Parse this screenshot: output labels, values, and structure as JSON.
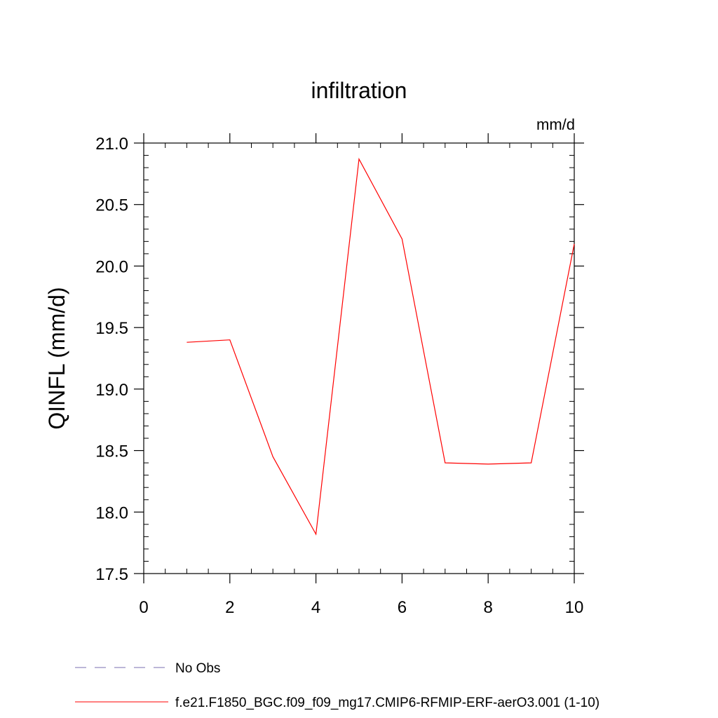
{
  "chart_data": {
    "type": "line",
    "title": "infiltration",
    "units_label": "mm/d",
    "xlabel": "",
    "ylabel": "QINFL  (mm/d)",
    "xlim": [
      0,
      10
    ],
    "ylim": [
      17.5,
      21.0
    ],
    "x_ticks": [
      "0",
      "2",
      "4",
      "6",
      "8",
      "10"
    ],
    "y_ticks": [
      "17.5",
      "18.0",
      "18.5",
      "19.0",
      "19.5",
      "20.0",
      "20.5",
      "21.0"
    ],
    "grid": false,
    "legend_position": "bottom-left",
    "series": [
      {
        "name": "f.e21.F1850_BGC.f09_f09_mg17.CMIP6-RFMIP-ERF-aerO3.001 (1-10)",
        "color": "#ff0000",
        "style": "solid",
        "x": [
          1,
          2,
          3,
          4,
          5,
          6,
          7,
          8,
          9,
          10
        ],
        "values": [
          19.38,
          19.4,
          18.45,
          17.82,
          20.87,
          20.22,
          18.4,
          18.39,
          18.4,
          20.18
        ]
      }
    ],
    "legend": [
      {
        "label": "No Obs",
        "color": "#7a6fb0",
        "style": "dashed"
      },
      {
        "label": "f.e21.F1850_BGC.f09_f09_mg17.CMIP6-RFMIP-ERF-aerO3.001 (1-10)",
        "color": "#ff0000",
        "style": "solid"
      }
    ]
  }
}
